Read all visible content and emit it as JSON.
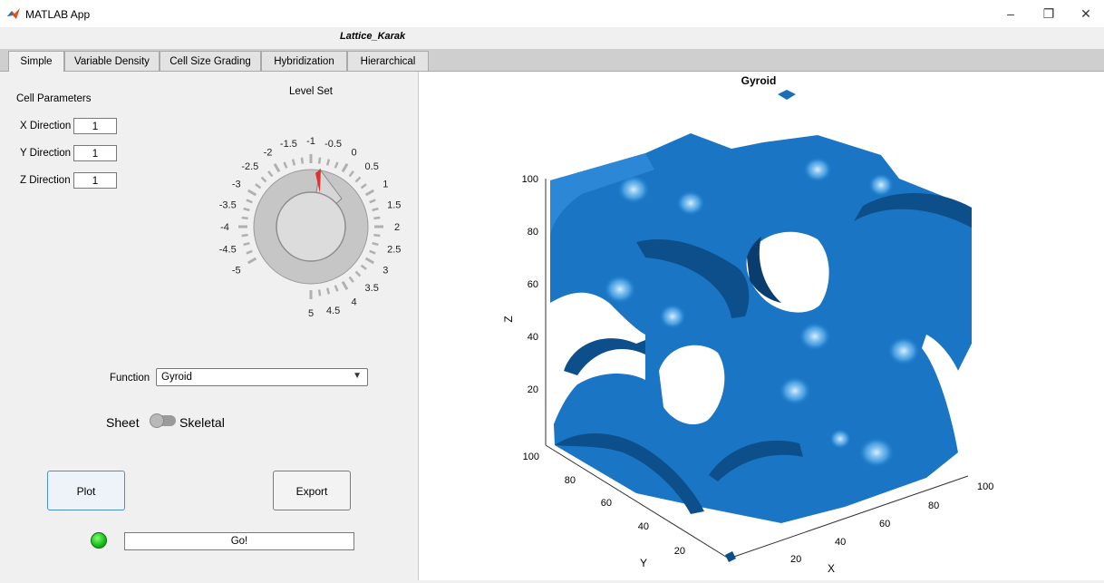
{
  "window": {
    "title": "MATLAB App",
    "min": "–",
    "restore": "❐",
    "close": "✕"
  },
  "app_title": "Lattice_Karak",
  "tabs": [
    "Simple",
    "Variable Density",
    "Cell Size Grading",
    "Hybridization",
    "Hierarchical"
  ],
  "cell_params": {
    "heading": "Cell Parameters",
    "x_label": "X Direction",
    "x_value": "1",
    "y_label": "Y Direction",
    "y_value": "1",
    "z_label": "Z Direction",
    "z_value": "1"
  },
  "knob": {
    "title": "Level Set",
    "value": 0,
    "range": [
      -5,
      5
    ],
    "labels": [
      "-5",
      "-4.5",
      "-4",
      "-3.5",
      "-3",
      "-2.5",
      "-2",
      "-1.5",
      "-1",
      "-0.5",
      "0",
      "0.5",
      "1",
      "1.5",
      "2",
      "2.5",
      "3",
      "3.5",
      "4",
      "4.5",
      "5"
    ]
  },
  "function": {
    "label": "Function",
    "value": "Gyroid"
  },
  "switch": {
    "left": "Sheet",
    "right": "Skeletal"
  },
  "buttons": {
    "plot": "Plot",
    "export": "Export"
  },
  "status": "Go!",
  "plot": {
    "title": "Gyroid",
    "z_label": "Z",
    "y_label": "Y",
    "x_label": "X",
    "z_ticks": [
      "20",
      "40",
      "60",
      "80",
      "100"
    ],
    "y_ticks": [
      "20",
      "40",
      "60",
      "80",
      "100"
    ],
    "x_ticks": [
      "20",
      "40",
      "60",
      "80",
      "100"
    ],
    "surface_color": "#1a76c4"
  }
}
